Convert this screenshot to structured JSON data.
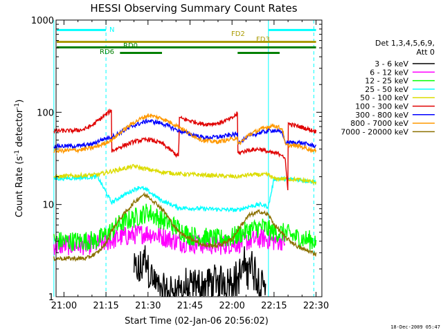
{
  "chart_data": {
    "type": "line",
    "title": "HESSI Observing Summary Count Rates",
    "xlabel": "Start Time (02-Jan-06 20:56:02)",
    "ylabel_main": "Count Rate (s",
    "ylabel_sup1": "-1",
    "ylabel_mid": " detector",
    "ylabel_sup2": "-1",
    "ylabel_end": ")",
    "yscale": "log",
    "ylim": [
      1,
      1000
    ],
    "xlim_minutes": [
      -3.966,
      90
    ],
    "x_ticks": [
      {
        "m": 0,
        "label": "21:00"
      },
      {
        "m": 15,
        "label": "21:15"
      },
      {
        "m": 30,
        "label": "21:30"
      },
      {
        "m": 45,
        "label": "21:45"
      },
      {
        "m": 60,
        "label": "22:00"
      },
      {
        "m": 75,
        "label": "22:15"
      },
      {
        "m": 90,
        "label": "22:30"
      }
    ],
    "y_ticks": [
      {
        "v": 1,
        "label": "1"
      },
      {
        "v": 10,
        "label": "10"
      },
      {
        "v": 100,
        "label": "100"
      },
      {
        "v": 1000,
        "label": "1000"
      }
    ],
    "legend": {
      "header1": "Det 1,3,4,5,6,9,",
      "header2": "Att 0",
      "entries": [
        {
          "label": "3 - 6 keV",
          "color": "#000000"
        },
        {
          "label": "6 - 12 keV",
          "color": "#ff00ff"
        },
        {
          "label": "12 - 25 keV",
          "color": "#00ff00"
        },
        {
          "label": "25 - 50 keV",
          "color": "#00ffff"
        },
        {
          "label": "50 - 100 keV",
          "color": "#dcdc00"
        },
        {
          "label": "100 - 300 keV",
          "color": "#e00000"
        },
        {
          "label": "300 - 800 keV",
          "color": "#0000ff"
        },
        {
          "label": "800 - 7000 keV",
          "color": "#ff9900"
        },
        {
          "label": "7000 - 20000 keV",
          "color": "#8b7000"
        }
      ]
    },
    "flag_bars": [
      {
        "label": "N",
        "color": "#00ffff",
        "y": 780,
        "segments": [
          [
            -3.966,
            15
          ],
          [
            73,
            90
          ]
        ]
      },
      {
        "label": "FD2",
        "color": "#aa9a00",
        "y": 580,
        "segments": [
          [
            -3.966,
            90
          ]
        ]
      },
      {
        "label": "FD3",
        "color": "",
        "y": 0,
        "segments": []
      },
      {
        "label": "RD0",
        "color": "#008000",
        "y": 505,
        "segments": [
          [
            -3.966,
            90
          ]
        ]
      },
      {
        "label": "RD6",
        "color": "#008000",
        "y": 440,
        "segments": [
          [
            20,
            35
          ],
          [
            62,
            77
          ]
        ]
      }
    ],
    "flag_labels": {
      "n": "N",
      "fd2": "FD2",
      "fd3": "FD3",
      "rd0": "RD0",
      "rd6": "RD6"
    },
    "vlines": [
      {
        "m": -3.6,
        "color": "#00ffff",
        "style": "solid"
      },
      {
        "m": 15,
        "color": "#00ffff",
        "style": "dashed"
      },
      {
        "m": 73,
        "color": "#00ffff",
        "style": "solid"
      },
      {
        "m": 89.2,
        "color": "#00ffff",
        "style": "dashed"
      }
    ],
    "series": [
      {
        "name": "3 - 6 keV",
        "color": "#000000",
        "points": [
          [
            25,
            2
          ],
          [
            27,
            1.8
          ],
          [
            29,
            2.8
          ],
          [
            30,
            2.2
          ],
          [
            32,
            1.5
          ],
          [
            34,
            1.2
          ],
          [
            36,
            1.1
          ],
          [
            62,
            1.6
          ],
          [
            64,
            2.0
          ],
          [
            66,
            2.4
          ],
          [
            68,
            1.9
          ],
          [
            70,
            1.5
          ],
          [
            72,
            1.3
          ]
        ]
      },
      {
        "name": "6 - 12 keV",
        "color": "#ff00ff",
        "points": [
          [
            -3.6,
            3.6
          ],
          [
            5,
            3.6
          ],
          [
            12,
            3.7
          ],
          [
            17,
            4.1
          ],
          [
            20,
            4.4
          ],
          [
            25,
            4.7
          ],
          [
            30,
            4.9
          ],
          [
            35,
            4.5
          ],
          [
            40,
            4.0
          ],
          [
            45,
            3.8
          ],
          [
            55,
            3.6
          ],
          [
            62,
            3.8
          ],
          [
            67,
            4.1
          ],
          [
            71,
            4.3
          ],
          [
            75,
            4.0
          ],
          [
            79,
            4.1
          ]
        ]
      },
      {
        "name": "12 - 25 keV",
        "color": "#00ff00",
        "points": [
          [
            -3.6,
            4.0
          ],
          [
            5,
            4.0
          ],
          [
            12,
            4.1
          ],
          [
            17,
            5.2
          ],
          [
            20,
            6.2
          ],
          [
            25,
            7.1
          ],
          [
            30,
            8.3
          ],
          [
            35,
            6.8
          ],
          [
            40,
            5.7
          ],
          [
            45,
            4.6
          ],
          [
            50,
            4.4
          ],
          [
            55,
            4.2
          ],
          [
            60,
            4.4
          ],
          [
            63,
            4.8
          ],
          [
            67,
            5.4
          ],
          [
            71,
            5.7
          ],
          [
            75,
            5.0
          ],
          [
            79,
            4.9
          ],
          [
            84,
            4.3
          ],
          [
            90,
            4.0
          ]
        ]
      },
      {
        "name": "25 - 50 keV",
        "color": "#00ffff",
        "points": [
          [
            -3.6,
            19
          ],
          [
            5,
            19.5
          ],
          [
            12,
            20
          ],
          [
            17,
            10.5
          ],
          [
            20,
            12
          ],
          [
            25,
            14.5
          ],
          [
            27,
            15.5
          ],
          [
            30,
            14
          ],
          [
            35,
            11
          ],
          [
            41,
            9.2
          ],
          [
            62,
            8.7
          ],
          [
            66,
            9.5
          ],
          [
            70,
            10
          ],
          [
            73,
            9.5
          ],
          [
            75,
            19
          ],
          [
            78,
            19
          ],
          [
            79,
            19
          ],
          [
            84,
            18.5
          ],
          [
            90,
            17.5
          ]
        ]
      },
      {
        "name": "50 - 100 keV",
        "color": "#dcdc00",
        "points": [
          [
            -3.6,
            20
          ],
          [
            12,
            21
          ],
          [
            17,
            23
          ],
          [
            20,
            24
          ],
          [
            25,
            26
          ],
          [
            30,
            24
          ],
          [
            35,
            22.5
          ],
          [
            41,
            21.5
          ],
          [
            62,
            20
          ],
          [
            66,
            21
          ],
          [
            70,
            21
          ],
          [
            73,
            21
          ],
          [
            75,
            19
          ],
          [
            78,
            19
          ],
          [
            79,
            19
          ],
          [
            84,
            18.5
          ],
          [
            90,
            17.5
          ]
        ]
      },
      {
        "name": "100 - 300 keV",
        "color": "#e00000",
        "points": [
          [
            -3.6,
            63
          ],
          [
            3,
            63
          ],
          [
            7,
            65
          ],
          [
            10,
            72
          ],
          [
            13,
            85
          ],
          [
            15,
            95
          ],
          [
            17,
            105
          ],
          [
            17.1,
            38
          ],
          [
            20,
            42
          ],
          [
            25,
            48
          ],
          [
            30,
            51
          ],
          [
            35,
            46
          ],
          [
            41,
            33
          ],
          [
            41.1,
            87
          ],
          [
            50,
            74
          ],
          [
            55,
            76
          ],
          [
            60,
            86
          ],
          [
            62,
            98
          ],
          [
            62.1,
            36
          ],
          [
            66,
            39
          ],
          [
            70,
            40
          ],
          [
            73,
            37
          ],
          [
            75,
            36
          ],
          [
            78,
            35
          ],
          [
            79,
            30
          ],
          [
            80,
            14
          ],
          [
            80.1,
            75
          ],
          [
            84,
            70
          ],
          [
            90,
            62
          ]
        ]
      },
      {
        "name": "300 - 800 keV",
        "color": "#0000ff",
        "points": [
          [
            -3.6,
            43
          ],
          [
            5,
            43
          ],
          [
            10,
            45
          ],
          [
            13,
            50
          ],
          [
            15,
            52
          ],
          [
            17,
            54
          ],
          [
            20,
            60
          ],
          [
            25,
            72
          ],
          [
            30,
            81
          ],
          [
            35,
            76
          ],
          [
            41,
            63
          ],
          [
            45,
            58
          ],
          [
            50,
            53
          ],
          [
            55,
            54
          ],
          [
            60,
            57
          ],
          [
            62,
            58
          ],
          [
            62.1,
            47
          ],
          [
            66,
            55
          ],
          [
            70,
            60
          ],
          [
            73,
            63
          ],
          [
            75,
            64
          ],
          [
            78,
            60
          ],
          [
            79,
            47
          ],
          [
            84,
            47
          ],
          [
            90,
            43
          ]
        ]
      },
      {
        "name": "800 - 7000 keV",
        "color": "#ff9900",
        "points": [
          [
            -3.6,
            38
          ],
          [
            5,
            39
          ],
          [
            10,
            41
          ],
          [
            13,
            44
          ],
          [
            15,
            47
          ],
          [
            17,
            50
          ],
          [
            20,
            60
          ],
          [
            25,
            78
          ],
          [
            30,
            93
          ],
          [
            35,
            86
          ],
          [
            41,
            70
          ],
          [
            45,
            58
          ],
          [
            50,
            49
          ],
          [
            55,
            48
          ],
          [
            60,
            51
          ],
          [
            62,
            54
          ],
          [
            62.1,
            44
          ],
          [
            66,
            57
          ],
          [
            70,
            65
          ],
          [
            73,
            70
          ],
          [
            75,
            72
          ],
          [
            78,
            66
          ],
          [
            79,
            44
          ],
          [
            84,
            43
          ],
          [
            90,
            38
          ]
        ]
      },
      {
        "name": "7000 - 20000 keV",
        "color": "#8b7000",
        "points": [
          [
            -3.6,
            2.6
          ],
          [
            3,
            2.6
          ],
          [
            8,
            2.6
          ],
          [
            12,
            3.0
          ],
          [
            15,
            3.8
          ],
          [
            17,
            5.2
          ],
          [
            20,
            7
          ],
          [
            25,
            10.5
          ],
          [
            28,
            12.7
          ],
          [
            30,
            12.3
          ],
          [
            35,
            9
          ],
          [
            41,
            5.0
          ],
          [
            50,
            3.6
          ],
          [
            55,
            3.6
          ],
          [
            60,
            4.2
          ],
          [
            63,
            5.8
          ],
          [
            66,
            7.6
          ],
          [
            70,
            8.4
          ],
          [
            73,
            7.7
          ],
          [
            75,
            6.1
          ],
          [
            78,
            4.8
          ],
          [
            79,
            4.4
          ],
          [
            84,
            3.4
          ],
          [
            90,
            2.9
          ]
        ]
      }
    ]
  },
  "footer": {
    "date": "18-Dec-2009 05:47"
  }
}
